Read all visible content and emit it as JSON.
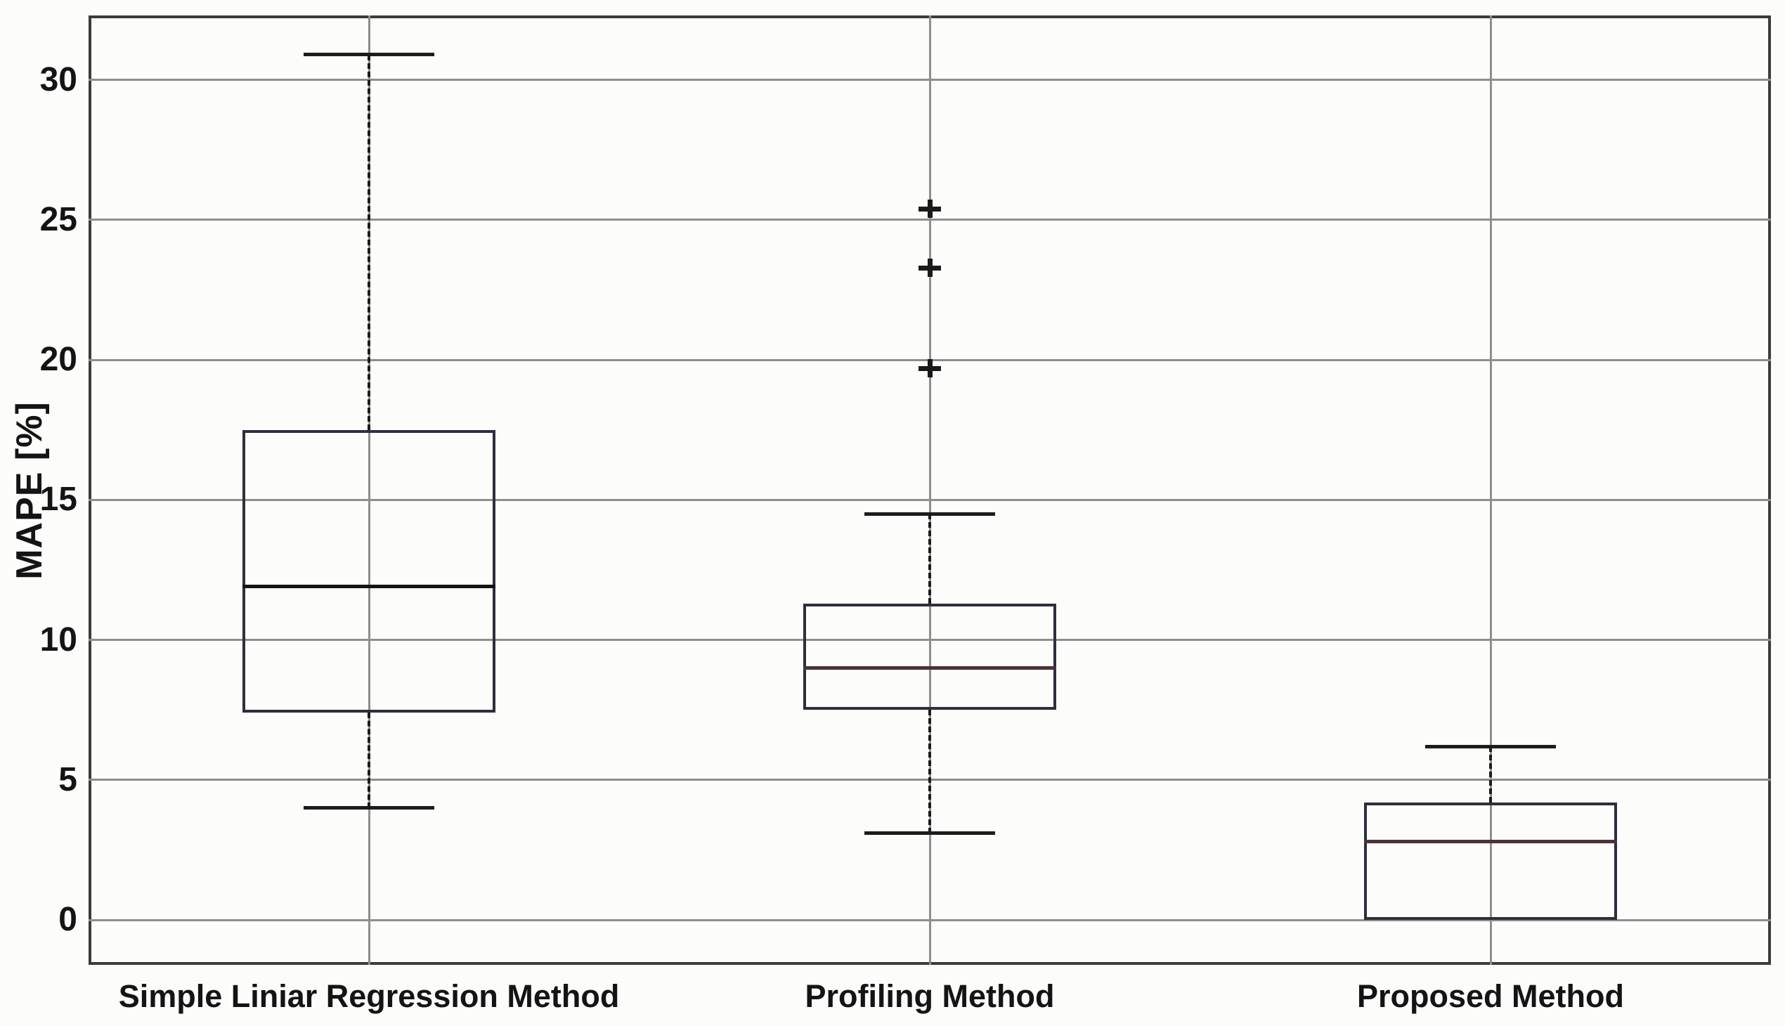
{
  "chart_data": {
    "type": "boxplot",
    "title": "",
    "xlabel": "",
    "ylabel": "MAPE [%]",
    "categories": [
      "Simple Liniar Regression Method",
      "Profiling Method",
      "Proposed Method"
    ],
    "yticks": [
      0,
      5,
      10,
      15,
      20,
      25,
      30
    ],
    "ylim": [
      -1.6,
      32.3
    ],
    "grid": true,
    "legend_position": "none",
    "series": [
      {
        "name": "Simple Liniar Regression Method",
        "whisker_low": 4.0,
        "q1": 7.4,
        "median": 11.9,
        "q3": 17.5,
        "whisker_high": 30.9,
        "outliers": []
      },
      {
        "name": "Profiling Method",
        "whisker_low": 3.1,
        "q1": 7.5,
        "median": 9.0,
        "q3": 11.3,
        "whisker_high": 14.5,
        "outliers": [
          19.7,
          23.3,
          25.4
        ]
      },
      {
        "name": "Proposed Method",
        "whisker_low": 0.0,
        "q1": 0.0,
        "median": 2.8,
        "q3": 4.2,
        "whisker_high": 6.2,
        "outliers": []
      }
    ],
    "colors": {
      "background": "#fcfcfa",
      "axis_border": "#3c3c3c",
      "grid": "#8e8e8e",
      "box_edge": "#2e2e3c",
      "median_first": "#141414",
      "median_default": "#4a3236",
      "whisker": "#1c1c1c",
      "outlier_marker": "#1a1a1a",
      "text": "#141414"
    }
  }
}
